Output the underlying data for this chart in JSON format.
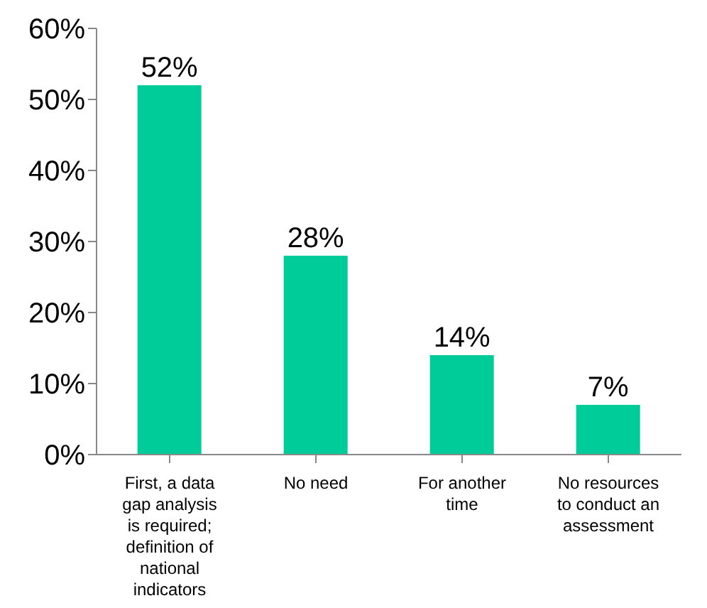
{
  "chart_data": {
    "type": "bar",
    "categories": [
      "First, a data gap analysis is required; definition of national indicators",
      "No need",
      "For another time",
      "No resources to conduct an assessment"
    ],
    "values": [
      52,
      28,
      14,
      7
    ],
    "value_labels": [
      "52%",
      "28%",
      "14%",
      "7%"
    ],
    "color": "#00cc99",
    "ylim": [
      0,
      60
    ],
    "yticks": [
      {
        "value": 0,
        "label": "0%"
      },
      {
        "value": 10,
        "label": "10%"
      },
      {
        "value": 20,
        "label": "20%"
      },
      {
        "value": 30,
        "label": "30%"
      },
      {
        "value": 40,
        "label": "40%"
      },
      {
        "value": 50,
        "label": "50%"
      },
      {
        "value": 60,
        "label": "60%"
      }
    ],
    "grid": false,
    "legend": false
  }
}
